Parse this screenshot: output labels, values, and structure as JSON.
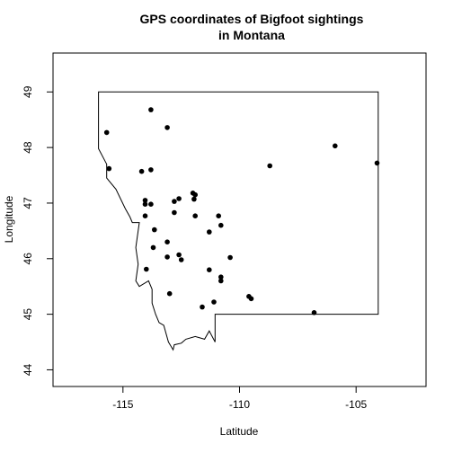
{
  "chart_data": {
    "type": "scatter",
    "title": "GPS coordinates of Bigfoot sightings",
    "title_line2": "in Montana",
    "xlabel": "Latitude",
    "ylabel": "Longitude",
    "xlim": [
      -118,
      -102
    ],
    "ylim": [
      43.7,
      49.7
    ],
    "x_ticks": [
      -115,
      -110,
      -105
    ],
    "x_tick_labels": [
      "-115",
      "-110",
      "-105"
    ],
    "y_ticks": [
      44,
      45,
      46,
      47,
      48,
      49
    ],
    "y_tick_labels": [
      "44",
      "45",
      "46",
      "47",
      "48",
      "49"
    ],
    "grid": false,
    "point_color": "#000000",
    "outline_color": "#000000",
    "points": [
      {
        "x": -115.7,
        "y": 48.27
      },
      {
        "x": -115.6,
        "y": 47.62
      },
      {
        "x": -114.2,
        "y": 47.57
      },
      {
        "x": -113.8,
        "y": 48.68
      },
      {
        "x": -113.8,
        "y": 47.6
      },
      {
        "x": -113.1,
        "y": 48.36
      },
      {
        "x": -114.05,
        "y": 47.05
      },
      {
        "x": -114.05,
        "y": 46.98
      },
      {
        "x": -113.8,
        "y": 46.98
      },
      {
        "x": -114.05,
        "y": 46.77
      },
      {
        "x": -113.65,
        "y": 46.52
      },
      {
        "x": -113.1,
        "y": 46.3
      },
      {
        "x": -113.7,
        "y": 46.2
      },
      {
        "x": -113.1,
        "y": 46.03
      },
      {
        "x": -112.6,
        "y": 46.07
      },
      {
        "x": -112.5,
        "y": 45.98
      },
      {
        "x": -114.0,
        "y": 45.81
      },
      {
        "x": -113.0,
        "y": 45.37
      },
      {
        "x": -112.8,
        "y": 47.03
      },
      {
        "x": -112.6,
        "y": 47.08
      },
      {
        "x": -112.8,
        "y": 46.83
      },
      {
        "x": -112.0,
        "y": 47.18
      },
      {
        "x": -111.9,
        "y": 47.15
      },
      {
        "x": -111.95,
        "y": 47.07
      },
      {
        "x": -111.9,
        "y": 46.77
      },
      {
        "x": -111.3,
        "y": 46.48
      },
      {
        "x": -110.9,
        "y": 46.77
      },
      {
        "x": -110.8,
        "y": 46.6
      },
      {
        "x": -110.4,
        "y": 46.02
      },
      {
        "x": -111.3,
        "y": 45.8
      },
      {
        "x": -110.8,
        "y": 45.67
      },
      {
        "x": -110.8,
        "y": 45.6
      },
      {
        "x": -111.1,
        "y": 45.22
      },
      {
        "x": -111.6,
        "y": 45.13
      },
      {
        "x": -109.6,
        "y": 45.32
      },
      {
        "x": -109.5,
        "y": 45.28
      },
      {
        "x": -108.7,
        "y": 47.67
      },
      {
        "x": -106.8,
        "y": 45.03
      },
      {
        "x": -105.9,
        "y": 48.03
      },
      {
        "x": -104.1,
        "y": 47.72
      }
    ],
    "state_outline": [
      [
        -116.05,
        49.0
      ],
      [
        -104.05,
        49.0
      ],
      [
        -104.05,
        45.0
      ],
      [
        -111.05,
        45.0
      ],
      [
        -111.05,
        44.5
      ],
      [
        -111.3,
        44.7
      ],
      [
        -111.5,
        44.55
      ],
      [
        -111.9,
        44.6
      ],
      [
        -112.3,
        44.55
      ],
      [
        -112.5,
        44.48
      ],
      [
        -112.8,
        44.45
      ],
      [
        -112.85,
        44.36
      ],
      [
        -113.05,
        44.5
      ],
      [
        -113.25,
        44.8
      ],
      [
        -113.45,
        44.85
      ],
      [
        -113.6,
        45.0
      ],
      [
        -113.75,
        45.2
      ],
      [
        -113.75,
        45.45
      ],
      [
        -113.9,
        45.6
      ],
      [
        -114.3,
        45.5
      ],
      [
        -114.45,
        45.6
      ],
      [
        -114.35,
        45.9
      ],
      [
        -114.45,
        46.2
      ],
      [
        -114.3,
        46.65
      ],
      [
        -114.6,
        46.65
      ],
      [
        -114.7,
        46.75
      ],
      [
        -114.9,
        46.9
      ],
      [
        -115.3,
        47.25
      ],
      [
        -115.7,
        47.45
      ],
      [
        -115.7,
        47.7
      ],
      [
        -116.05,
        47.98
      ],
      [
        -116.05,
        49.0
      ]
    ]
  }
}
